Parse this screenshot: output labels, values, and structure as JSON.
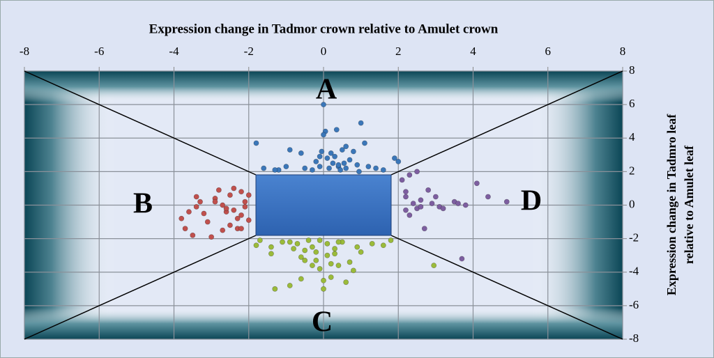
{
  "chart_data": {
    "type": "scatter",
    "title": "Expression change in Tadmor crown relative to Amulet crown",
    "ylabel": [
      "Expression change in Tadmro leaf",
      "relative to Amulet leaf"
    ],
    "xlim": [
      -8,
      8
    ],
    "ylim": [
      -8,
      8
    ],
    "xticks": [
      -8,
      -6,
      -4,
      -2,
      0,
      2,
      4,
      6,
      8
    ],
    "yticks": [
      -8,
      -6,
      -4,
      -2,
      0,
      2,
      4,
      6,
      8
    ],
    "grid": true,
    "series": [
      {
        "name": "A",
        "color": "#3b77b9",
        "x": [
          -1.8,
          -1.6,
          -1.2,
          -1.0,
          -1.3,
          -0.9,
          -0.6,
          -0.5,
          -0.3,
          -0.2,
          -0.1,
          0,
          0.05,
          0.1,
          0.15,
          0.2,
          0.25,
          0.3,
          0.35,
          0.4,
          0.45,
          0.5,
          0.55,
          0.6,
          0.7,
          0.8,
          0.9,
          1.0,
          1.1,
          1.2,
          1.4,
          1.6,
          1.9,
          2.0,
          -0.05,
          0.0,
          -0.1,
          0.4,
          0.95,
          0.6
        ],
        "values": [
          3.7,
          2.2,
          2.1,
          2.3,
          2.1,
          3.3,
          3.1,
          2.2,
          2.1,
          2.6,
          2.3,
          6.0,
          4.4,
          2.8,
          2.2,
          3.1,
          2.5,
          2.9,
          4.5,
          2.3,
          2.1,
          3.3,
          2.5,
          2.2,
          2.7,
          3.2,
          2.4,
          4.9,
          3.7,
          2.3,
          2.2,
          2.1,
          2.8,
          2.6,
          3.2,
          4.2,
          2.9,
          2.4,
          2.0,
          3.5
        ]
      },
      {
        "name": "B",
        "color": "#c0504d",
        "x": [
          -3.8,
          -3.7,
          -3.5,
          -3.4,
          -3.3,
          -3.2,
          -3.0,
          -2.9,
          -2.8,
          -2.7,
          -2.6,
          -2.5,
          -2.4,
          -2.3,
          -2.2,
          -2.1,
          -2.0,
          -2.2,
          -2.4,
          -2.7,
          -3.1,
          -3.6,
          -2.3,
          -2.1,
          -2.5,
          -2.9,
          -2.0,
          -2.2,
          -3.4,
          -2.6
        ],
        "values": [
          -0.8,
          -1.4,
          -1.8,
          -0.1,
          0.2,
          -0.5,
          -1.9,
          0.4,
          0.9,
          0.0,
          -0.4,
          0.6,
          -0.3,
          -1.4,
          0.8,
          0.2,
          -0.9,
          -0.6,
          1.0,
          -1.5,
          -1.0,
          -0.4,
          -0.8,
          -0.1,
          -1.2,
          0.2,
          0.6,
          -1.4,
          0.5,
          -0.2
        ]
      },
      {
        "name": "C",
        "color": "#9bbb3a",
        "x": [
          -1.8,
          -1.7,
          -1.4,
          -1.3,
          -1.1,
          -0.9,
          -0.8,
          -0.7,
          -0.6,
          -0.5,
          -0.4,
          -0.3,
          -0.2,
          -0.1,
          0,
          0.1,
          0.2,
          0.3,
          0.4,
          0.5,
          0.6,
          0.8,
          0.9,
          1.0,
          1.3,
          1.6,
          1.8,
          -1.4,
          -0.9,
          -0.6,
          -0.3,
          -0.2,
          0.0,
          0.3,
          0.7,
          0.4,
          -0.5,
          0.1,
          -0.1,
          0.2,
          2.95
        ],
        "values": [
          -2.4,
          -2.1,
          -2.5,
          -5.0,
          -2.2,
          -4.8,
          -2.6,
          -2.3,
          -4.4,
          -3.3,
          -2.1,
          -3.6,
          -2.8,
          -3.8,
          -5.0,
          -2.3,
          -4.3,
          -2.9,
          -3.6,
          -2.2,
          -4.6,
          -3.9,
          -2.5,
          -2.8,
          -2.3,
          -2.4,
          -2.1,
          -2.9,
          -2.2,
          -3.1,
          -2.5,
          -3.3,
          -4.5,
          -2.6,
          -3.4,
          -2.2,
          -2.7,
          -3.0,
          -2.1,
          -3.5,
          -3.6
        ]
      },
      {
        "name": "D",
        "color": "#7d5ea0",
        "x": [
          2.1,
          2.2,
          2.2,
          2.3,
          2.4,
          2.5,
          2.5,
          2.6,
          2.7,
          2.8,
          2.9,
          3.0,
          3.1,
          3.2,
          3.5,
          3.6,
          3.8,
          4.1,
          4.4,
          4.9,
          2.3,
          2.6,
          2.2,
          3.7
        ],
        "values": [
          1.5,
          0.5,
          -0.3,
          1.8,
          0.1,
          -0.2,
          2.0,
          0.3,
          -1.4,
          0.9,
          0.1,
          0.5,
          -0.1,
          -0.2,
          0.2,
          0.1,
          0.0,
          1.3,
          0.5,
          0.2,
          -0.6,
          -0.1,
          0.8,
          -3.2
        ]
      }
    ]
  }
}
